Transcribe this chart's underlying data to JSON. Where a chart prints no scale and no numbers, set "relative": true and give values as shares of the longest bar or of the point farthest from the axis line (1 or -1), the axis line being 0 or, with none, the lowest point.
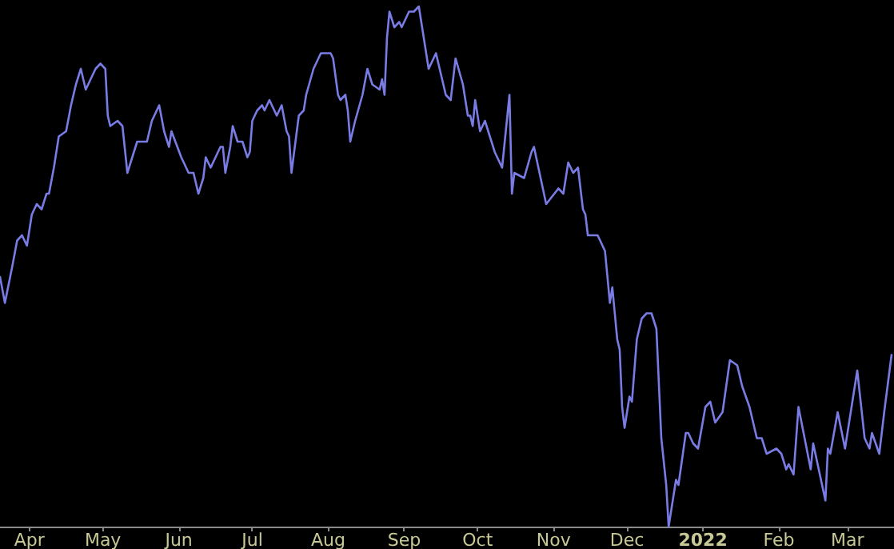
{
  "chart_data": {
    "type": "line",
    "relative": true,
    "grid": false,
    "marker": "none",
    "line_style": "solid",
    "xlim": [
      "2021-03-20",
      "2022-03-20"
    ],
    "xticks": [
      {
        "value": "2021-04-01",
        "label": "Apr"
      },
      {
        "value": "2021-05-01",
        "label": "May"
      },
      {
        "value": "2021-06-01",
        "label": "Jun"
      },
      {
        "value": "2021-07-01",
        "label": "Jul"
      },
      {
        "value": "2021-08-01",
        "label": "Aug"
      },
      {
        "value": "2021-09-01",
        "label": "Sep"
      },
      {
        "value": "2021-10-01",
        "label": "Oct"
      },
      {
        "value": "2021-11-01",
        "label": "Nov"
      },
      {
        "value": "2021-12-01",
        "label": "Dec"
      },
      {
        "value": "2022-01-01",
        "label": "2022"
      },
      {
        "value": "2022-02-01",
        "label": "Feb"
      },
      {
        "value": "2022-03-01",
        "label": "Mar"
      }
    ],
    "x": [
      "2021-03-20",
      "2021-03-22",
      "2021-03-25",
      "2021-03-27",
      "2021-03-29",
      "2021-03-31",
      "2021-04-02",
      "2021-04-04",
      "2021-04-06",
      "2021-04-08",
      "2021-04-09",
      "2021-04-11",
      "2021-04-13",
      "2021-04-16",
      "2021-04-18",
      "2021-04-20",
      "2021-04-22",
      "2021-04-24",
      "2021-04-26",
      "2021-04-28",
      "2021-04-30",
      "2021-05-02",
      "2021-05-03",
      "2021-05-04",
      "2021-05-07",
      "2021-05-09",
      "2021-05-11",
      "2021-05-13",
      "2021-05-15",
      "2021-05-17",
      "2021-05-19",
      "2021-05-21",
      "2021-05-24",
      "2021-05-26",
      "2021-05-28",
      "2021-05-29",
      "2021-06-02",
      "2021-06-04",
      "2021-06-05",
      "2021-06-07",
      "2021-06-09",
      "2021-06-11",
      "2021-06-12",
      "2021-06-14",
      "2021-06-16",
      "2021-06-18",
      "2021-06-19",
      "2021-06-20",
      "2021-06-22",
      "2021-06-23",
      "2021-06-25",
      "2021-06-27",
      "2021-06-29",
      "2021-06-30",
      "2021-07-01",
      "2021-07-03",
      "2021-07-05",
      "2021-07-06",
      "2021-07-08",
      "2021-07-09",
      "2021-07-11",
      "2021-07-13",
      "2021-07-15",
      "2021-07-16",
      "2021-07-17",
      "2021-07-20",
      "2021-07-22",
      "2021-07-23",
      "2021-07-26",
      "2021-07-29",
      "2021-08-02",
      "2021-08-03",
      "2021-08-05",
      "2021-08-06",
      "2021-08-08",
      "2021-08-09",
      "2021-08-10",
      "2021-08-12",
      "2021-08-15",
      "2021-08-17",
      "2021-08-19",
      "2021-08-22",
      "2021-08-23",
      "2021-08-24",
      "2021-08-25",
      "2021-08-26",
      "2021-08-28",
      "2021-08-30",
      "2021-08-31",
      "2021-09-03",
      "2021-09-05",
      "2021-09-07",
      "2021-09-11",
      "2021-09-14",
      "2021-09-18",
      "2021-09-20",
      "2021-09-22",
      "2021-09-25",
      "2021-09-27",
      "2021-09-28",
      "2021-09-29",
      "2021-09-30",
      "2021-10-02",
      "2021-10-04",
      "2021-10-08",
      "2021-10-11",
      "2021-10-14",
      "2021-10-15",
      "2021-10-16",
      "2021-10-20",
      "2021-10-23",
      "2021-10-24",
      "2021-10-29",
      "2021-11-03",
      "2021-11-05",
      "2021-11-07",
      "2021-11-09",
      "2021-11-11",
      "2021-11-13",
      "2021-11-14",
      "2021-11-15",
      "2021-11-17",
      "2021-11-19",
      "2021-11-22",
      "2021-11-24",
      "2021-11-25",
      "2021-11-27",
      "2021-11-28",
      "2021-11-29",
      "2021-11-30",
      "2021-12-02",
      "2021-12-03",
      "2021-12-05",
      "2021-12-07",
      "2021-12-09",
      "2021-12-10",
      "2021-12-11",
      "2021-12-13",
      "2021-12-15",
      "2021-12-17",
      "2021-12-18",
      "2021-12-21",
      "2021-12-22",
      "2021-12-25",
      "2021-12-26",
      "2021-12-28",
      "2021-12-30",
      "2022-01-02",
      "2022-01-04",
      "2022-01-06",
      "2022-01-09",
      "2022-01-12",
      "2022-01-15",
      "2022-01-17",
      "2022-01-20",
      "2022-01-23",
      "2022-01-25",
      "2022-01-27",
      "2022-01-31",
      "2022-02-02",
      "2022-02-04",
      "2022-02-05",
      "2022-02-07",
      "2022-02-09",
      "2022-02-14",
      "2022-02-15",
      "2022-02-20",
      "2022-02-21",
      "2022-02-22",
      "2022-02-25",
      "2022-02-28",
      "2022-03-03",
      "2022-03-05",
      "2022-03-08",
      "2022-03-10",
      "2022-03-11",
      "2022-03-14",
      "2022-03-16",
      "2022-03-19"
    ],
    "series": [
      {
        "color": "#7a7ce6",
        "values": [
          0.48,
          0.43,
          0.5,
          0.55,
          0.56,
          0.54,
          0.6,
          0.62,
          0.61,
          0.64,
          0.64,
          0.69,
          0.75,
          0.76,
          0.81,
          0.85,
          0.88,
          0.84,
          0.86,
          0.88,
          0.89,
          0.88,
          0.79,
          0.77,
          0.78,
          0.77,
          0.68,
          0.71,
          0.74,
          0.74,
          0.74,
          0.78,
          0.81,
          0.76,
          0.73,
          0.76,
          0.71,
          0.69,
          0.68,
          0.68,
          0.64,
          0.67,
          0.71,
          0.69,
          0.71,
          0.73,
          0.73,
          0.68,
          0.73,
          0.77,
          0.74,
          0.74,
          0.71,
          0.72,
          0.78,
          0.8,
          0.81,
          0.8,
          0.82,
          0.81,
          0.79,
          0.81,
          0.76,
          0.75,
          0.68,
          0.79,
          0.8,
          0.83,
          0.88,
          0.91,
          0.91,
          0.9,
          0.83,
          0.82,
          0.83,
          0.8,
          0.74,
          0.78,
          0.83,
          0.88,
          0.85,
          0.84,
          0.86,
          0.83,
          0.94,
          0.99,
          0.96,
          0.97,
          0.96,
          0.99,
          0.99,
          1.0,
          0.88,
          0.91,
          0.83,
          0.82,
          0.9,
          0.85,
          0.79,
          0.79,
          0.77,
          0.82,
          0.76,
          0.78,
          0.72,
          0.69,
          0.83,
          0.64,
          0.68,
          0.67,
          0.72,
          0.73,
          0.62,
          0.65,
          0.64,
          0.7,
          0.68,
          0.69,
          0.61,
          0.6,
          0.56,
          0.56,
          0.56,
          0.53,
          0.43,
          0.46,
          0.36,
          0.34,
          0.23,
          0.19,
          0.25,
          0.24,
          0.36,
          0.4,
          0.41,
          0.41,
          0.41,
          0.38,
          0.17,
          0.08,
          0.0,
          0.09,
          0.08,
          0.18,
          0.18,
          0.16,
          0.15,
          0.23,
          0.24,
          0.2,
          0.22,
          0.32,
          0.31,
          0.27,
          0.23,
          0.17,
          0.17,
          0.14,
          0.15,
          0.14,
          0.11,
          0.12,
          0.1,
          0.23,
          0.11,
          0.16,
          0.05,
          0.15,
          0.14,
          0.22,
          0.15,
          0.24,
          0.3,
          0.17,
          0.15,
          0.18,
          0.14,
          0.22,
          0.33
        ]
      }
    ]
  }
}
